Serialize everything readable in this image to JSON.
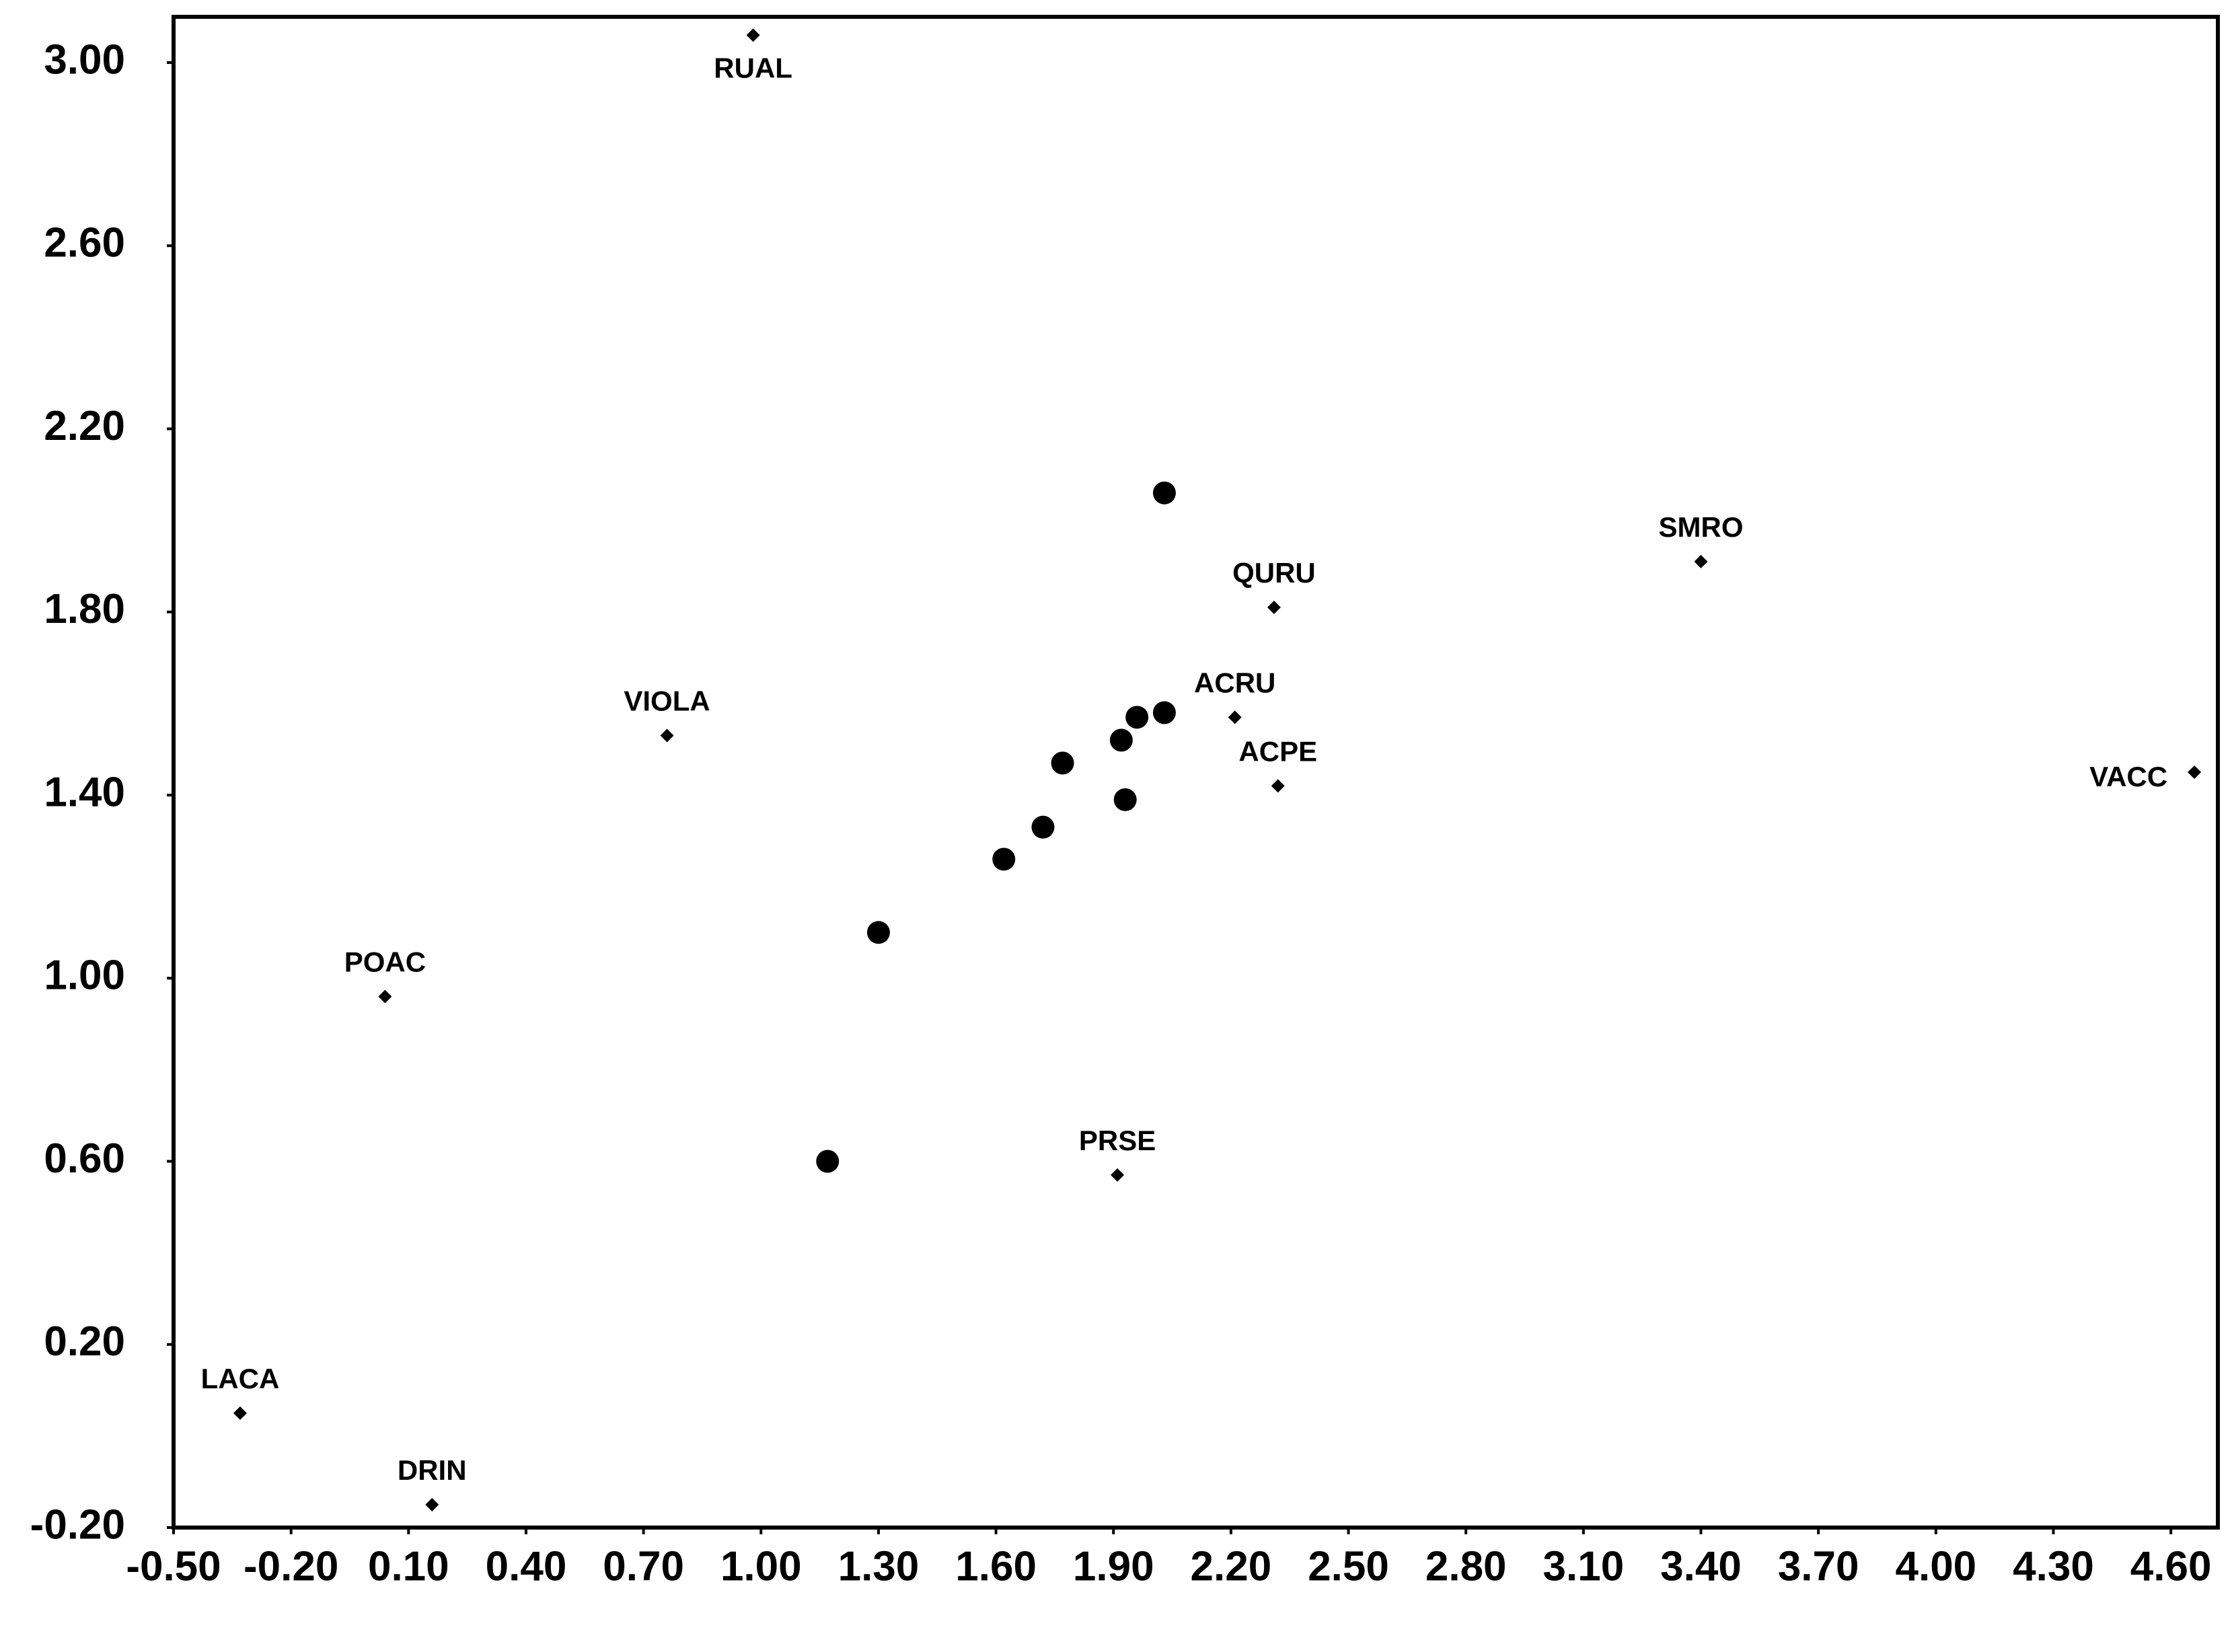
{
  "chart_data": {
    "type": "scatter",
    "xlim": [
      -0.5,
      4.72
    ],
    "ylim": [
      -0.2,
      3.1
    ],
    "xticks": [
      {
        "value": -0.5,
        "label": "-0.50"
      },
      {
        "value": -0.2,
        "label": "-0.20"
      },
      {
        "value": 0.1,
        "label": "0.10"
      },
      {
        "value": 0.4,
        "label": "0.40"
      },
      {
        "value": 0.7,
        "label": "0.70"
      },
      {
        "value": 1.0,
        "label": "1.00"
      },
      {
        "value": 1.3,
        "label": "1.30"
      },
      {
        "value": 1.6,
        "label": "1.60"
      },
      {
        "value": 1.9,
        "label": "1.90"
      },
      {
        "value": 2.2,
        "label": "2.20"
      },
      {
        "value": 2.5,
        "label": "2.50"
      },
      {
        "value": 2.8,
        "label": "2.80"
      },
      {
        "value": 3.1,
        "label": "3.10"
      },
      {
        "value": 3.4,
        "label": "3.40"
      },
      {
        "value": 3.7,
        "label": "3.70"
      },
      {
        "value": 4.0,
        "label": "4.00"
      },
      {
        "value": 4.3,
        "label": "4.30"
      },
      {
        "value": 4.6,
        "label": "4.60"
      }
    ],
    "yticks": [
      {
        "value": -0.2,
        "label": "-0.20"
      },
      {
        "value": 0.2,
        "label": "0.20"
      },
      {
        "value": 0.6,
        "label": "0.60"
      },
      {
        "value": 1.0,
        "label": "1.00"
      },
      {
        "value": 1.4,
        "label": "1.40"
      },
      {
        "value": 1.8,
        "label": "1.80"
      },
      {
        "value": 2.2,
        "label": "2.20"
      },
      {
        "value": 2.6,
        "label": "2.60"
      },
      {
        "value": 3.0,
        "label": "3.00"
      }
    ],
    "grid": false,
    "series": [
      {
        "marker": "diamond",
        "color": "#000000",
        "labels": [
          "RUAL",
          "SMRO",
          "QURU",
          "ACRU",
          "ACPE",
          "VIOLA",
          "VACC",
          "POAC",
          "PRSE",
          "LACA",
          "DRIN"
        ],
        "x": [
          0.98,
          3.4,
          2.31,
          2.21,
          2.32,
          0.76,
          4.66,
          0.04,
          1.91,
          -0.33,
          0.16
        ],
        "values": [
          3.06,
          1.91,
          1.81,
          1.57,
          1.42,
          1.53,
          1.45,
          0.96,
          0.57,
          0.05,
          -0.15
        ]
      },
      {
        "marker": "circle",
        "color": "#000000",
        "x": [
          2.03,
          1.96,
          2.03,
          1.92,
          1.77,
          1.93,
          1.72,
          1.62,
          1.3,
          1.17
        ],
        "values": [
          2.06,
          1.57,
          1.58,
          1.52,
          1.47,
          1.39,
          1.33,
          1.26,
          1.1,
          0.6
        ]
      }
    ]
  }
}
